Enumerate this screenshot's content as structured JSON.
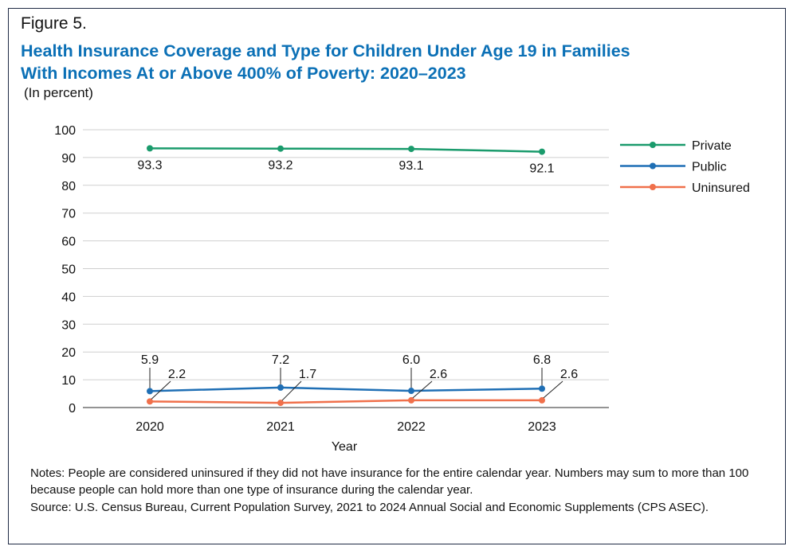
{
  "figure_label": "Figure 5.",
  "title_line1": "Health Insurance Coverage and Type for Children Under Age 19 in Families",
  "title_line2": "With Incomes At or Above 400% of Poverty: 2020–2023",
  "subtitle": "(In percent)",
  "notes": "Notes: People are considered uninsured if they did not have insurance for the entire calendar year. Numbers may sum to more than 100 because people can hold more than one type of insurance during the calendar year.",
  "source": "Source: U.S. Census Bureau, Current Population Survey, 2021 to 2024 Annual Social and Economic Supplements (CPS ASEC).",
  "chart_data": {
    "type": "line",
    "x": [
      "2020",
      "2021",
      "2022",
      "2023"
    ],
    "xlabel": "Year",
    "ylabel": "",
    "ylim": [
      0,
      100
    ],
    "yticks": [
      "0",
      "10",
      "20",
      "30",
      "40",
      "50",
      "60",
      "70",
      "80",
      "90",
      "100"
    ],
    "grid": true,
    "legend_position": "right",
    "series": [
      {
        "name": "Private",
        "color": "#1a9b6c",
        "values": [
          93.3,
          93.2,
          93.1,
          92.1
        ],
        "labels": [
          "93.3",
          "93.2",
          "93.1",
          "92.1"
        ]
      },
      {
        "name": "Public",
        "color": "#1f6fb5",
        "values": [
          5.9,
          7.2,
          6.0,
          6.8
        ],
        "labels": [
          "5.9",
          "7.2",
          "6.0",
          "6.8"
        ]
      },
      {
        "name": "Uninsured",
        "color": "#f0704b",
        "values": [
          2.2,
          1.7,
          2.6,
          2.6
        ],
        "labels": [
          "2.2",
          "1.7",
          "2.6",
          "2.6"
        ]
      }
    ]
  }
}
